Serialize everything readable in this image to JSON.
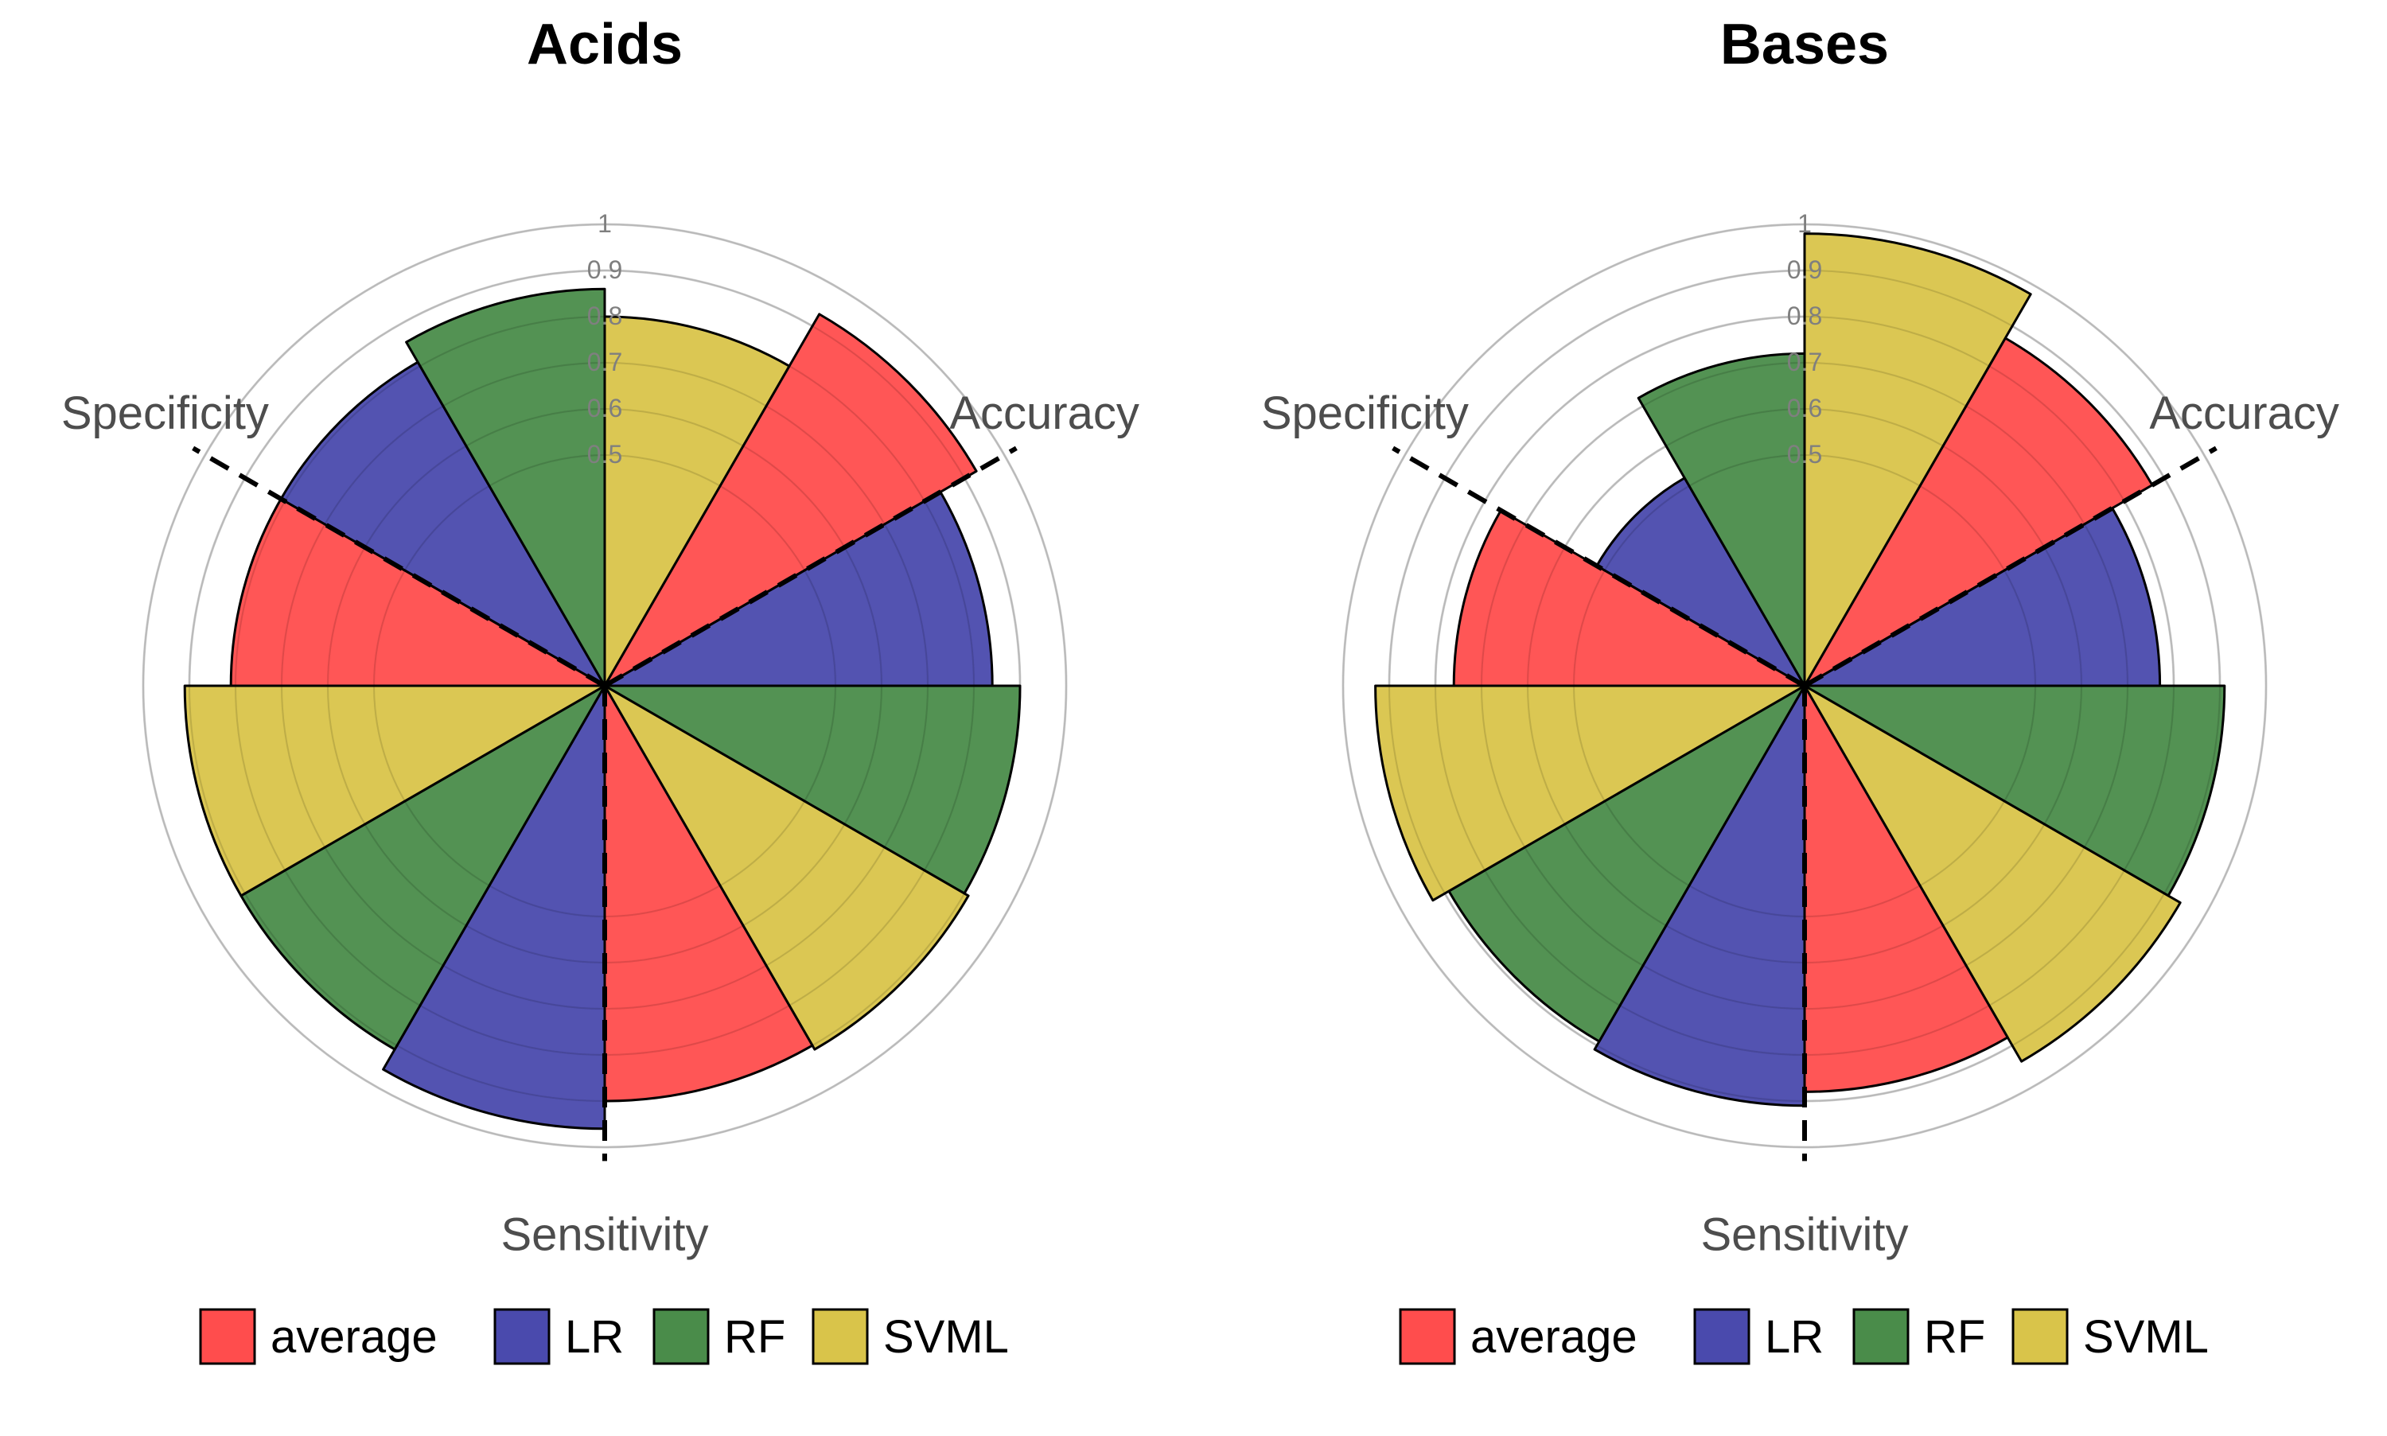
{
  "chart_data": [
    {
      "type": "polar-bar",
      "title": "Acids",
      "radial_ticks": [
        "0.5",
        "0.6",
        "0.7",
        "0.8",
        "0.9",
        "1"
      ],
      "rlim": [
        0,
        1
      ],
      "metrics": [
        "Accuracy",
        "Sensitivity",
        "Specificity"
      ],
      "series": [
        {
          "name": "average",
          "values": [
            0.93,
            0.9,
            0.81
          ]
        },
        {
          "name": "LR",
          "values": [
            0.84,
            0.96,
            0.81
          ]
        },
        {
          "name": "RF",
          "values": [
            0.9,
            0.91,
            0.86
          ]
        },
        {
          "name": "SVML",
          "values": [
            0.91,
            0.91,
            0.8
          ]
        }
      ],
      "grid": true,
      "legend_position": "bottom"
    },
    {
      "type": "polar-bar",
      "title": "Bases",
      "radial_ticks": [
        "0.5",
        "0.6",
        "0.7",
        "0.8",
        "0.9",
        "1"
      ],
      "rlim": [
        0,
        1
      ],
      "metrics": [
        "Accuracy",
        "Sensitivity",
        "Specificity"
      ],
      "series": [
        {
          "name": "average",
          "values": [
            0.87,
            0.88,
            0.76
          ]
        },
        {
          "name": "LR",
          "values": [
            0.77,
            0.91,
            0.52
          ]
        },
        {
          "name": "RF",
          "values": [
            0.91,
            0.89,
            0.72
          ]
        },
        {
          "name": "SVML",
          "values": [
            0.94,
            0.93,
            0.98
          ]
        }
      ],
      "grid": true,
      "legend_position": "bottom"
    }
  ],
  "colors": {
    "average": "#ff4d4d",
    "LR": "#4a4aad",
    "RF": "#4a8c4a",
    "SVML": "#d9c44a",
    "grid": "#d3d3d3",
    "tick_text": "#7f7f7f",
    "axis_label": "#4d4d4d"
  }
}
